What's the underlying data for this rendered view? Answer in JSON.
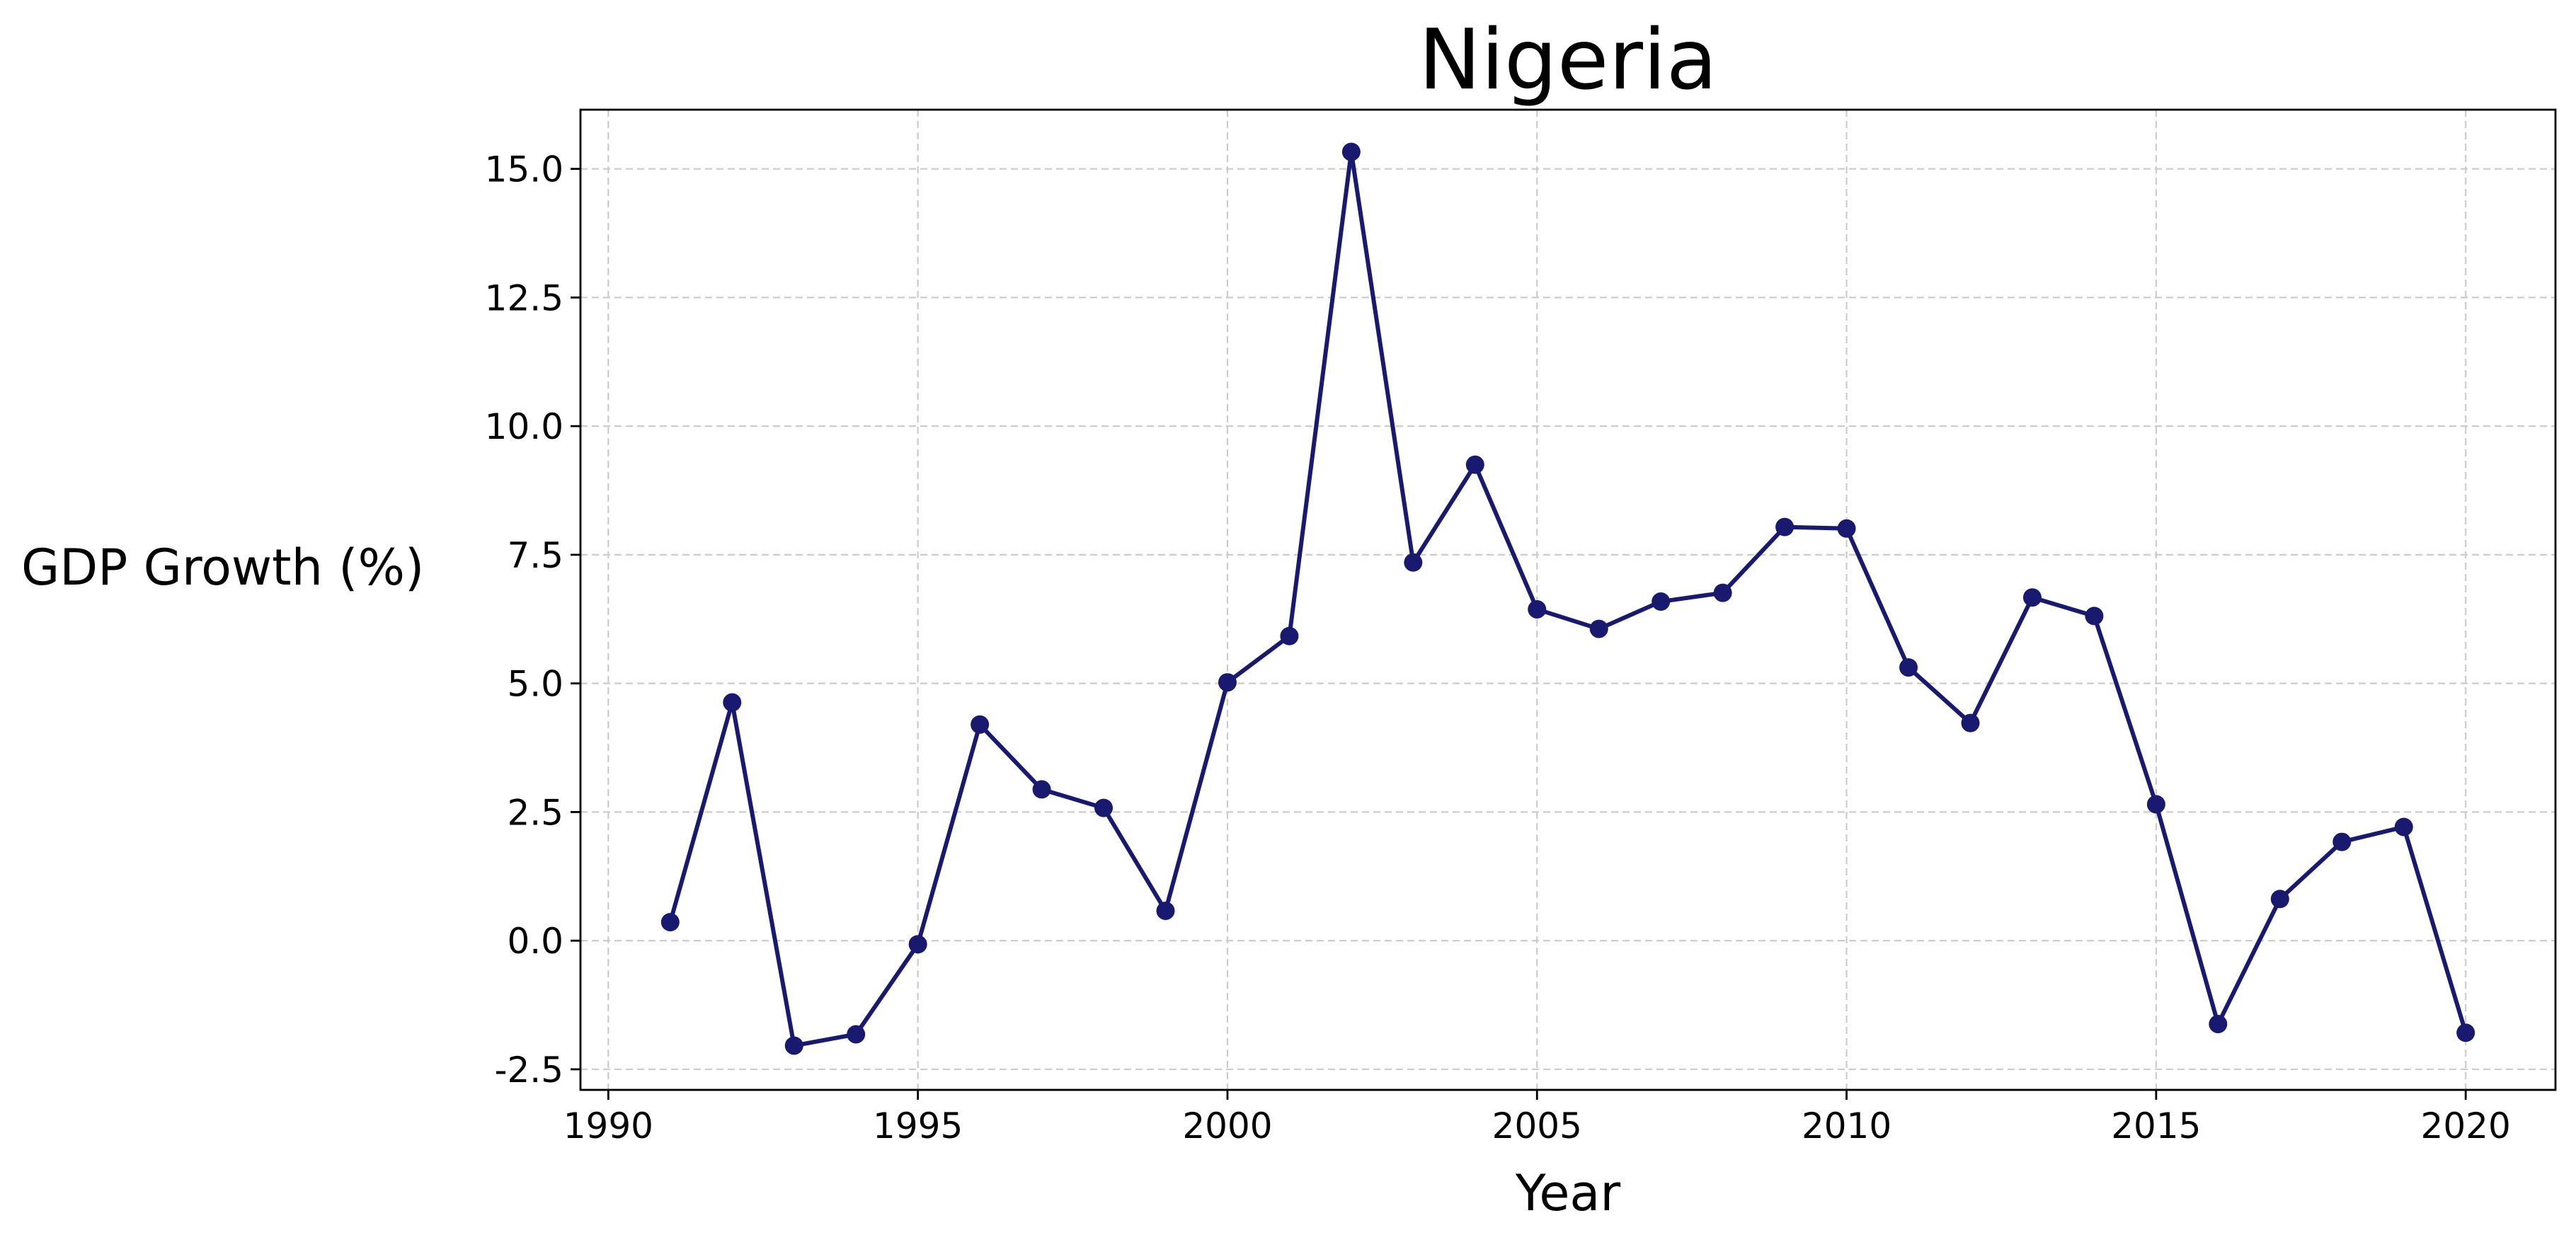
{
  "chart_data": {
    "type": "line",
    "title": "Nigeria",
    "xlabel": "Year",
    "ylabel": "GDP Growth (%)",
    "xlim": [
      1989.55,
      2021.45
    ],
    "ylim": [
      -2.9,
      16.15
    ],
    "x_ticks": [
      1990,
      1995,
      2000,
      2005,
      2010,
      2015,
      2020
    ],
    "y_ticks": [
      -2.5,
      0.0,
      2.5,
      5.0,
      7.5,
      10.0,
      12.5,
      15.0
    ],
    "x_tick_labels": [
      "1990",
      "1995",
      "2000",
      "2005",
      "2010",
      "2015",
      "2020"
    ],
    "y_tick_labels": [
      "-2.5",
      "0.0",
      "2.5",
      "5.0",
      "7.5",
      "10.0",
      "12.5",
      "15.0"
    ],
    "grid": true,
    "legend": false,
    "series": [
      {
        "color": "#191970",
        "marker": "circle",
        "x": [
          1991,
          1992,
          1993,
          1994,
          1995,
          1996,
          1997,
          1998,
          1999,
          2000,
          2001,
          2002,
          2003,
          2004,
          2005,
          2006,
          2007,
          2008,
          2009,
          2010,
          2011,
          2012,
          2013,
          2014,
          2015,
          2016,
          2017,
          2018,
          2019,
          2020
        ],
        "y": [
          0.36,
          4.63,
          -2.04,
          -1.82,
          -0.07,
          4.2,
          2.94,
          2.58,
          0.58,
          5.02,
          5.92,
          15.33,
          7.35,
          9.25,
          6.44,
          6.06,
          6.59,
          6.76,
          8.04,
          8.01,
          5.31,
          4.23,
          6.67,
          6.31,
          2.65,
          -1.62,
          0.81,
          1.92,
          2.21,
          -1.79
        ]
      }
    ]
  }
}
